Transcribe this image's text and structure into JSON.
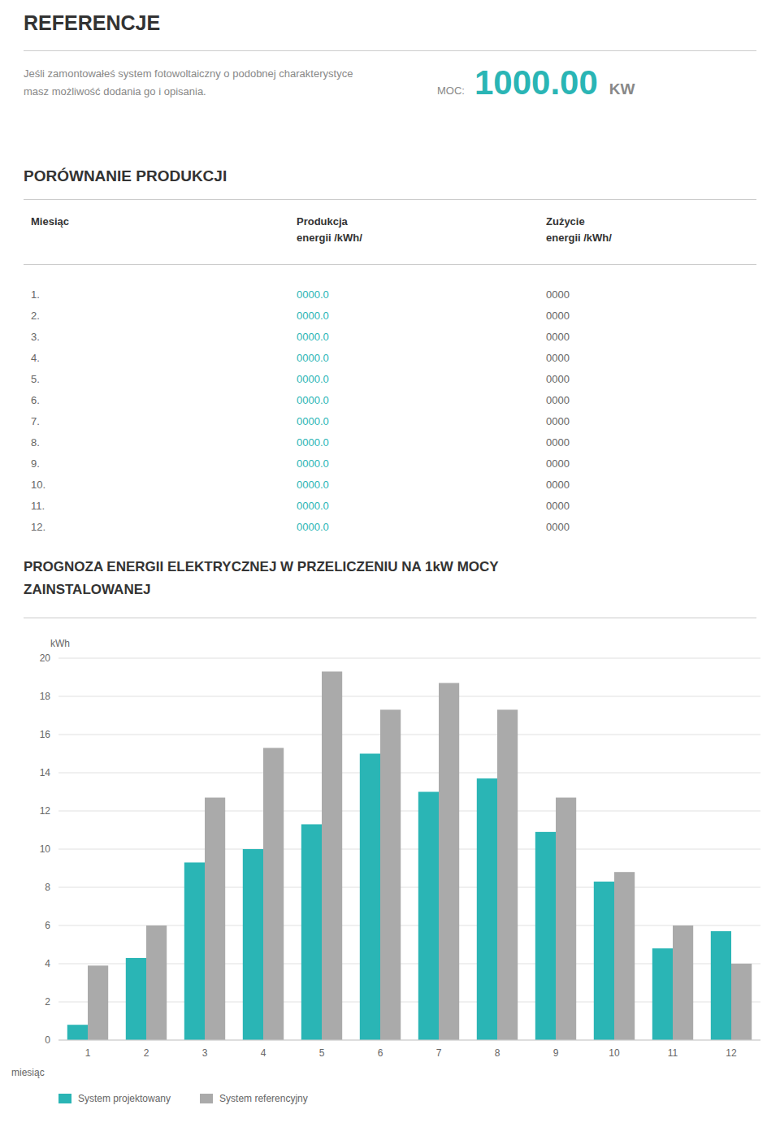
{
  "page": {
    "title": "REFERENCJE",
    "subtitle": "Jeśli zamontowałeś system fotowoltaiczny o podobnej charakterystyce\nmasz możliwość dodania go i opisania.",
    "power": {
      "label": "MOC:",
      "value": "1000.00",
      "unit": "KW"
    },
    "section1_title": "PORÓWNANIE PRODUKCJI",
    "table": {
      "columns": [
        "Miesiąc",
        "Produkcja\nenergii /kWh/",
        "Zużycie\nenergii /kWh/"
      ],
      "rows": [
        [
          "1.",
          "0000.0",
          "0000"
        ],
        [
          "2.",
          "0000.0",
          "0000"
        ],
        [
          "3.",
          "0000.0",
          "0000"
        ],
        [
          "4.",
          "0000.0",
          "0000"
        ],
        [
          "5.",
          "0000.0",
          "0000"
        ],
        [
          "6.",
          "0000.0",
          "0000"
        ],
        [
          "7.",
          "0000.0",
          "0000"
        ],
        [
          "8.",
          "0000.0",
          "0000"
        ],
        [
          "9.",
          "0000.0",
          "0000"
        ],
        [
          "10.",
          "0000.0",
          "0000"
        ],
        [
          "11.",
          "0000.0",
          "0000"
        ],
        [
          "12.",
          "0000.0",
          "0000"
        ]
      ]
    },
    "section2_title": [
      "PROGNOZA ENERGII ELEKTRYCZNEJ W PRZELICZENIU NA 1kW MOCY",
      "ZAINSTALOWANEJ"
    ]
  },
  "chart_data": {
    "type": "bar",
    "categories": [
      "1",
      "2",
      "3",
      "4",
      "5",
      "6",
      "7",
      "8",
      "9",
      "10",
      "11",
      "12"
    ],
    "x_label": "miesiąc",
    "y_label": "kWh",
    "series": [
      {
        "name": "System projektowany",
        "color": "#2ab5b5",
        "values": [
          0.8,
          4.3,
          9.3,
          10.0,
          11.3,
          15.0,
          13.0,
          13.7,
          10.9,
          8.3,
          4.8,
          5.7
        ]
      },
      {
        "name": "System referencyjny",
        "color": "#aaaaaa",
        "values": [
          3.9,
          6.0,
          12.7,
          15.3,
          19.3,
          17.3,
          18.7,
          17.3,
          12.7,
          8.8,
          6.0,
          4.0
        ]
      }
    ],
    "ylim": [
      0,
      20
    ],
    "yticks": [
      0,
      2,
      4,
      6,
      8,
      10,
      12,
      14,
      16,
      18,
      20
    ],
    "grid": true,
    "legend": "bottom"
  }
}
